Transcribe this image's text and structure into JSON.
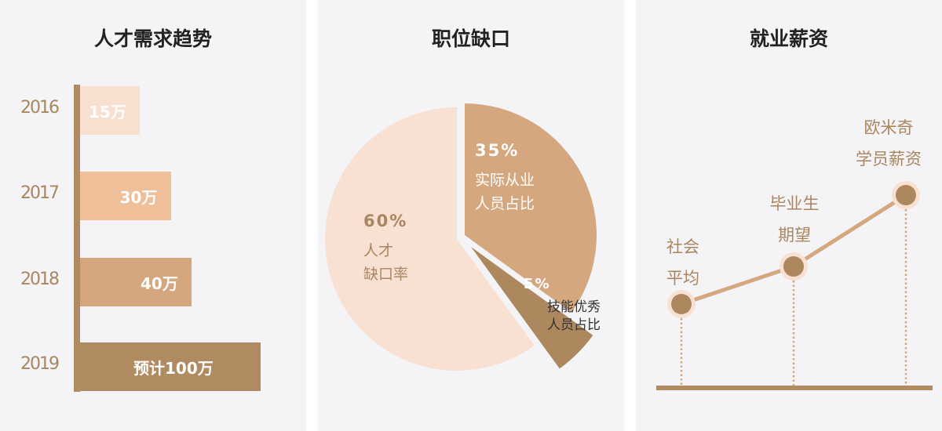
{
  "panels": {
    "demand": {
      "title": "人才需求趋势"
    },
    "gap": {
      "title": "职位缺口"
    },
    "salary": {
      "title": "就业薪资"
    }
  },
  "chart_data": [
    {
      "type": "bar",
      "orientation": "horizontal",
      "title": "人才需求趋势",
      "categories": [
        "2016",
        "2017",
        "2018",
        "2019"
      ],
      "values": [
        15,
        30,
        40,
        100
      ],
      "data_labels": [
        "15万",
        "30万",
        "40万",
        "预计100万"
      ],
      "colors": [
        "#f8e0d0",
        "#efbf99",
        "#d4a77f",
        "#b08a60"
      ],
      "unit": "万"
    },
    {
      "type": "pie",
      "title": "职位缺口",
      "slices": [
        {
          "pct": "60%",
          "value": 60,
          "label": [
            "人才",
            "缺口率"
          ],
          "color": "#f8e0d2"
        },
        {
          "pct": "35%",
          "value": 35,
          "label": [
            "实际从业",
            "人员占比"
          ],
          "color": "#d4a77f"
        },
        {
          "pct": "5%",
          "value": 5,
          "label": [
            "技能优秀",
            "人员占比"
          ],
          "color": "#ad885f"
        }
      ]
    },
    {
      "type": "line",
      "title": "就业薪资",
      "categories": [
        [
          "社会",
          "平均"
        ],
        [
          "毕业生",
          "期望"
        ],
        [
          "欧米奇",
          "学员薪资"
        ]
      ],
      "relative_levels": [
        1,
        2,
        3
      ],
      "color": "#d4a77f",
      "point_color": "#ad885f"
    }
  ]
}
